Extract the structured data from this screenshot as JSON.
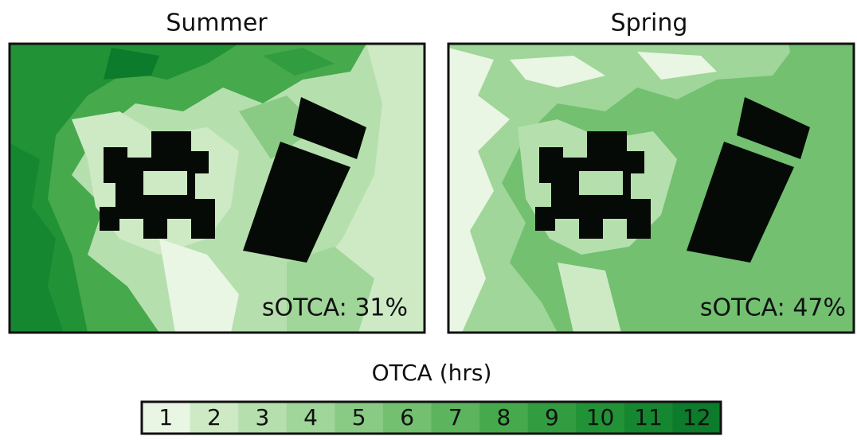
{
  "panels": [
    {
      "title": "Summer",
      "annotation": "sOTCA: 31%"
    },
    {
      "title": "Spring",
      "annotation": "sOTCA: 47%"
    }
  ],
  "legend": {
    "title": "OTCA (hrs)",
    "levels": [
      {
        "value": 1,
        "color": "#e9f6e4"
      },
      {
        "value": 2,
        "color": "#cdeac5"
      },
      {
        "value": 3,
        "color": "#b6dfae"
      },
      {
        "value": 4,
        "color": "#a0d699"
      },
      {
        "value": 5,
        "color": "#89cb84"
      },
      {
        "value": 6,
        "color": "#72c070"
      },
      {
        "value": 7,
        "color": "#5cb45d"
      },
      {
        "value": 8,
        "color": "#46a94c"
      },
      {
        "value": 9,
        "color": "#329d40"
      },
      {
        "value": 10,
        "color": "#219236"
      },
      {
        "value": 11,
        "color": "#158730"
      },
      {
        "value": 12,
        "color": "#0c7b2b"
      }
    ]
  }
}
